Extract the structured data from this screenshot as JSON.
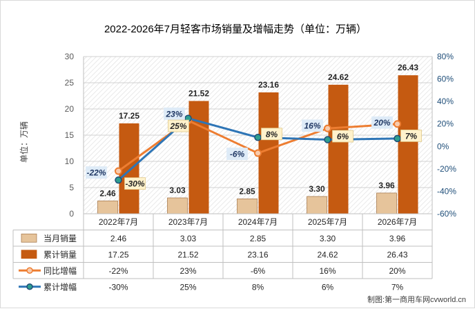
{
  "chart_data": {
    "type": "bar",
    "title": "2022-2026年7月轻客市场销量及增幅走势（单位：万辆）",
    "ylabel": "单位：万辆",
    "ylim": [
      0,
      30
    ],
    "yticks": [
      0,
      5,
      10,
      15,
      20,
      25,
      30
    ],
    "y2lim": [
      -60,
      80
    ],
    "y2ticks": [
      "-60%",
      "-40%",
      "-20%",
      "0%",
      "20%",
      "40%",
      "60%",
      "80%"
    ],
    "categories": [
      "2022年7月",
      "2023年7月",
      "2024年7月",
      "2025年7月",
      "2026年7月"
    ],
    "grid": true,
    "legend": "bottom-table",
    "series": [
      {
        "name": "当月销量",
        "type": "bar",
        "axis": "left",
        "color": "#e6c49b",
        "values": [
          2.46,
          3.03,
          2.85,
          3.3,
          3.96
        ],
        "labels": [
          "2.46",
          "3.03",
          "2.85",
          "3.30",
          "3.96"
        ],
        "table": [
          "2.46",
          "3.03",
          "2.85",
          "3.30",
          "3.96"
        ]
      },
      {
        "name": "累计销量",
        "type": "bar",
        "axis": "left",
        "color": "#c55a11",
        "values": [
          17.25,
          21.52,
          23.16,
          24.62,
          26.43
        ],
        "labels": [
          "17.25",
          "21.52",
          "23.16",
          "24.62",
          "26.43"
        ],
        "table": [
          "17.25",
          "21.52",
          "23.16",
          "24.62",
          "26.43"
        ]
      },
      {
        "name": "同比增幅",
        "type": "line",
        "axis": "right",
        "color": "#ed7d31",
        "values": [
          -22,
          23,
          -6,
          16,
          20
        ],
        "labels": [
          "-22%",
          "23%",
          "-6%",
          "16%",
          "20%"
        ],
        "table": [
          "-22%",
          "23%",
          "-6%",
          "16%",
          "20%"
        ]
      },
      {
        "name": "累计增幅",
        "type": "line",
        "axis": "right",
        "color": "#2e75b6",
        "values": [
          -30,
          25,
          8,
          6,
          7
        ],
        "labels": [
          "-30%",
          "25%",
          "8%",
          "6%",
          "7%"
        ],
        "table": [
          "-30%",
          "25%",
          "8%",
          "6%",
          "7%"
        ]
      }
    ]
  },
  "watermark": "制图:第一商用车网cvworld.cn"
}
